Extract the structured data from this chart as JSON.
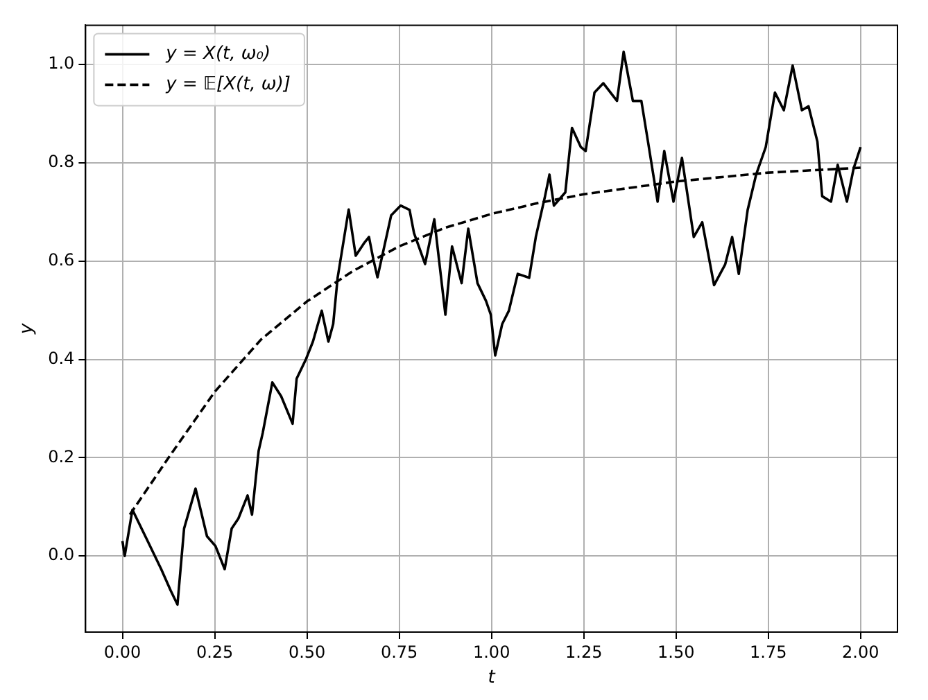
{
  "chart_data": {
    "type": "line",
    "xlabel": "t",
    "ylabel": "y",
    "xlim": [
      -0.1,
      2.1
    ],
    "ylim": [
      -0.155,
      1.08
    ],
    "xticks": [
      {
        "value": 0,
        "label": "0.00"
      },
      {
        "value": 0.25,
        "label": "0.25"
      },
      {
        "value": 0.5,
        "label": "0.50"
      },
      {
        "value": 0.75,
        "label": "0.75"
      },
      {
        "value": 1,
        "label": "1.00"
      },
      {
        "value": 1.25,
        "label": "1.25"
      },
      {
        "value": 1.5,
        "label": "1.50"
      },
      {
        "value": 1.75,
        "label": "1.75"
      },
      {
        "value": 2,
        "label": "2.00"
      }
    ],
    "yticks": [
      {
        "value": 0,
        "label": "0.0"
      },
      {
        "value": 0.2,
        "label": "0.2"
      },
      {
        "value": 0.4,
        "label": "0.4"
      },
      {
        "value": 0.6,
        "label": "0.6"
      },
      {
        "value": 0.8,
        "label": "0.8"
      },
      {
        "value": 1,
        "label": "1.0"
      }
    ],
    "grid": true,
    "legend": "top left",
    "marker": "none",
    "series": [
      {
        "name": "y = X(t, ω₀)",
        "color": "#000000",
        "line_style": "solid",
        "x": [
          0,
          0.006,
          0.027,
          0.069,
          0.105,
          0.131,
          0.149,
          0.167,
          0.198,
          0.229,
          0.252,
          0.277,
          0.296,
          0.314,
          0.339,
          0.351,
          0.369,
          0.38,
          0.406,
          0.43,
          0.461,
          0.472,
          0.497,
          0.516,
          0.54,
          0.558,
          0.571,
          0.583,
          0.613,
          0.632,
          0.656,
          0.668,
          0.68,
          0.691,
          0.728,
          0.754,
          0.778,
          0.79,
          0.82,
          0.845,
          0.875,
          0.893,
          0.919,
          0.937,
          0.962,
          0.985,
          0.998,
          1.01,
          1.029,
          1.047,
          1.071,
          1.102,
          1.12,
          1.145,
          1.157,
          1.169,
          1.2,
          1.218,
          1.242,
          1.255,
          1.279,
          1.303,
          1.34,
          1.358,
          1.383,
          1.406,
          1.424,
          1.45,
          1.468,
          1.493,
          1.516,
          1.548,
          1.571,
          1.603,
          1.633,
          1.652,
          1.67,
          1.694,
          1.717,
          1.743,
          1.768,
          1.792,
          1.816,
          1.841,
          1.859,
          1.883,
          1.896,
          1.92,
          1.938,
          1.963,
          1.981,
          2.0
        ],
        "values": [
          0.03,
          0.0,
          0.094,
          0.029,
          -0.027,
          -0.071,
          -0.099,
          0.056,
          0.137,
          0.04,
          0.02,
          -0.027,
          0.056,
          0.076,
          0.123,
          0.084,
          0.214,
          0.25,
          0.353,
          0.325,
          0.269,
          0.361,
          0.4,
          0.436,
          0.499,
          0.436,
          0.472,
          0.566,
          0.705,
          0.611,
          0.638,
          0.649,
          0.603,
          0.567,
          0.693,
          0.713,
          0.704,
          0.657,
          0.594,
          0.685,
          0.491,
          0.63,
          0.555,
          0.666,
          0.555,
          0.519,
          0.491,
          0.408,
          0.472,
          0.499,
          0.574,
          0.566,
          0.649,
          0.732,
          0.776,
          0.713,
          0.74,
          0.871,
          0.832,
          0.824,
          0.943,
          0.962,
          0.926,
          1.026,
          0.926,
          0.926,
          0.843,
          0.721,
          0.824,
          0.721,
          0.81,
          0.649,
          0.679,
          0.551,
          0.593,
          0.649,
          0.574,
          0.704,
          0.776,
          0.832,
          0.943,
          0.907,
          0.998,
          0.907,
          0.915,
          0.843,
          0.732,
          0.721,
          0.796,
          0.721,
          0.788,
          0.832
        ]
      },
      {
        "name": "y = 𝔼[X(t, ω)]",
        "color": "#000000",
        "line_style": "dashed",
        "x": [
          0.02,
          0.125,
          0.25,
          0.375,
          0.5,
          0.625,
          0.75,
          0.875,
          1.0,
          1.125,
          1.25,
          1.5,
          1.75,
          2.0
        ],
        "values": [
          0.084,
          0.2,
          0.334,
          0.44,
          0.518,
          0.58,
          0.63,
          0.668,
          0.696,
          0.718,
          0.736,
          0.762,
          0.78,
          0.79
        ]
      }
    ]
  }
}
